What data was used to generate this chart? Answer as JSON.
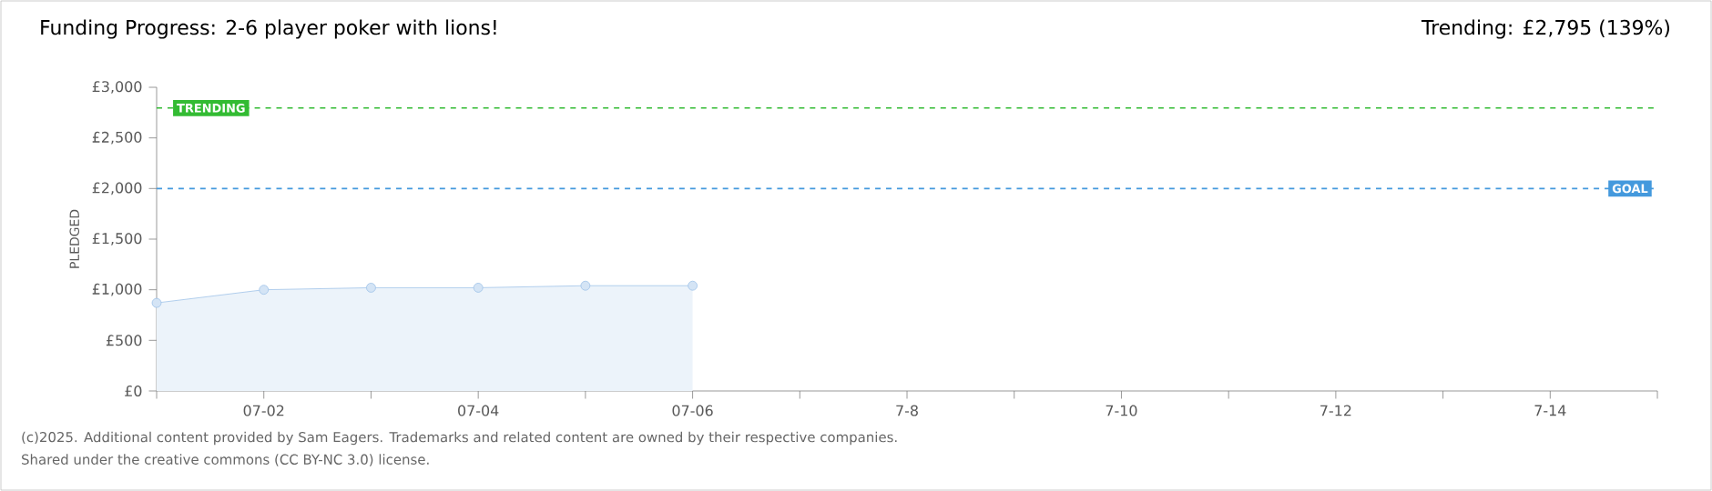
{
  "chart_data": {
    "type": "area",
    "title": "Funding Progress: 2-6 player poker with lions!",
    "subtitle": "Trending: £2,795 (139%)",
    "ylabel": "PLEDGED",
    "categories": [
      null,
      "07-02",
      null,
      "07-04",
      null,
      "07-06",
      null,
      "7-8",
      null,
      "7-10",
      null,
      "7-12",
      null,
      "7-14",
      null
    ],
    "series": [
      {
        "color": "#9fc3e8",
        "values": [
          870,
          1000,
          1020,
          1020,
          1040,
          1040,
          null,
          null,
          null,
          null,
          null,
          null,
          null,
          null,
          null
        ]
      }
    ],
    "marker": "circle",
    "ylim": [
      0,
      3000
    ],
    "yticks": [
      {
        "value": 0,
        "label": "£0"
      },
      {
        "value": 500,
        "label": "£500"
      },
      {
        "value": 1000,
        "label": "£1,000"
      },
      {
        "value": 1500,
        "label": "£1,500"
      },
      {
        "value": 2000,
        "label": "£2,000"
      },
      {
        "value": 2500,
        "label": "£2,500"
      },
      {
        "value": 3000,
        "label": "£3,000"
      }
    ],
    "ref_lines": [
      {
        "axis": "y",
        "value": 2795,
        "label": "TRENDING",
        "color": "#33bb33",
        "line_style": "dashed"
      },
      {
        "axis": "y",
        "value": 2000,
        "label": "GOAL",
        "color": "#4499dd",
        "line_style": "dashed"
      }
    ],
    "annotations": [
      "(c)2025. Additional content provided by Sam Eagers. Trademarks and related content are owned by their respective companies.",
      "Shared under the creative commons (CC BY-NC 3.0) license."
    ],
    "grid": false
  }
}
